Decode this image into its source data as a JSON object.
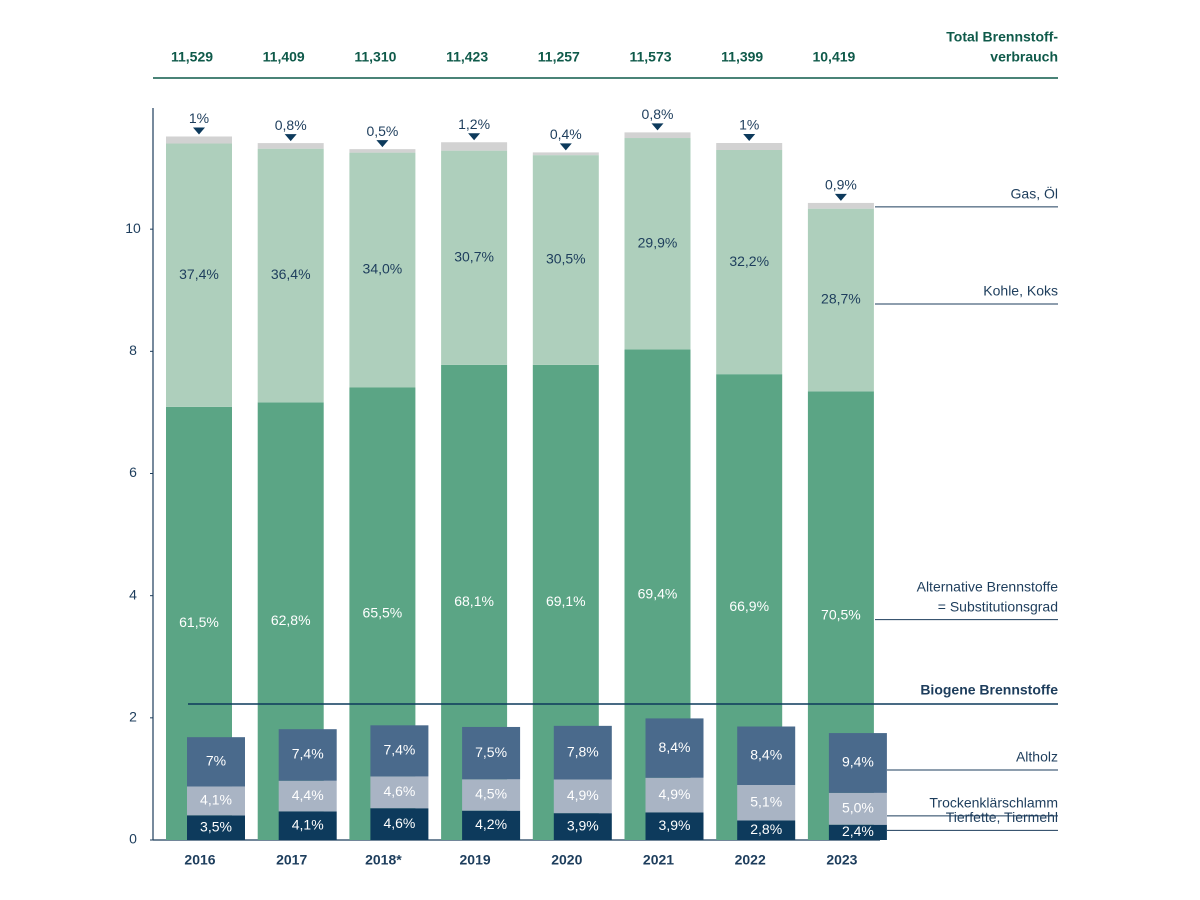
{
  "chart_data": {
    "type": "bar",
    "categories": [
      "2016",
      "2017",
      "2018*",
      "2019",
      "2020",
      "2021",
      "2022",
      "2023"
    ],
    "total_label": [
      "Total Brennstoff-",
      "verbrauch"
    ],
    "totals": {
      "values": [
        11.529,
        11.409,
        11.31,
        11.423,
        11.257,
        11.573,
        11.399,
        10.419
      ],
      "value_labels": [
        "11,529",
        "11,409",
        "11,310",
        "11,423",
        "11,257",
        "11,573",
        "11,399",
        "10,419"
      ]
    },
    "ylim": [
      0,
      12
    ],
    "yticks": [
      0,
      2,
      4,
      6,
      8,
      10
    ],
    "series": [
      {
        "name": "Alternative Brennstoffe",
        "name_note": "= Substitutionsgrad",
        "color": "#5ba585",
        "values": [
          61.5,
          62.8,
          65.5,
          68.1,
          69.1,
          69.4,
          66.9,
          70.5
        ],
        "value_labels": [
          "61,5%",
          "62,8%",
          "65,5%",
          "68,1%",
          "69,1%",
          "69,4%",
          "66,9%",
          "70,5%"
        ]
      },
      {
        "name": "Kohle, Koks",
        "color": "#aecfbc",
        "values": [
          37.4,
          36.4,
          34.0,
          30.7,
          30.5,
          29.9,
          32.2,
          28.7
        ],
        "value_labels": [
          "37,4%",
          "36,4%",
          "34,0%",
          "30,7%",
          "30,5%",
          "29,9%",
          "32,2%",
          "28,7%"
        ]
      },
      {
        "name": "Gas, Öl",
        "color": "#d2d2d2",
        "values": [
          1,
          0.8,
          0.5,
          1.2,
          0.4,
          0.8,
          1,
          0.9
        ],
        "value_labels": [
          "1%",
          "0,8%",
          "0,5%",
          "1,2%",
          "0,4%",
          "0,8%",
          "1%",
          "0,9%"
        ]
      }
    ],
    "biogenic": {
      "title": "Biogene Brennstoffe",
      "series": [
        {
          "name": "Tierfette, Tiermehl",
          "color": "#0d3a5c",
          "values": [
            3.5,
            4.1,
            4.6,
            4.2,
            3.9,
            3.9,
            2.8,
            2.4
          ],
          "value_labels": [
            "3,5%",
            "4,1%",
            "4,6%",
            "4,2%",
            "3,9%",
            "3,9%",
            "2,8%",
            "2,4%"
          ]
        },
        {
          "name": "Trockenklärschlamm",
          "color": "#a9b4c4",
          "values": [
            4.1,
            4.4,
            4.6,
            4.5,
            4.9,
            4.9,
            5.1,
            5.0
          ],
          "value_labels": [
            "4,1%",
            "4,4%",
            "4,6%",
            "4,5%",
            "4,9%",
            "4,9%",
            "5,1%",
            "5,0%"
          ]
        },
        {
          "name": "Altholz",
          "color": "#4a6a8c",
          "values": [
            7,
            7.4,
            7.4,
            7.5,
            7.8,
            8.4,
            8.4,
            9.4
          ],
          "value_labels": [
            "7%",
            "7,4%",
            "7,4%",
            "7,5%",
            "7,8%",
            "8,4%",
            "8,4%",
            "9,4%"
          ]
        }
      ]
    }
  }
}
